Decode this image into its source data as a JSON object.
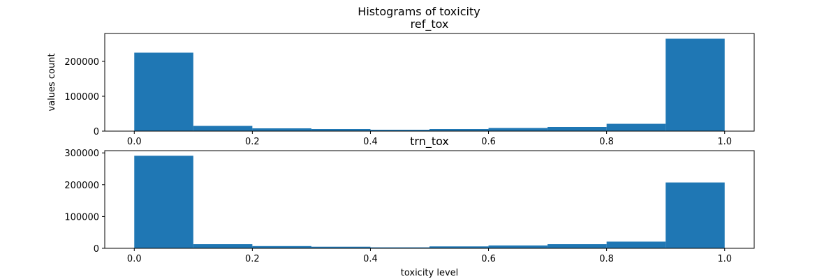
{
  "figure": {
    "suptitle": "Histograms of toxicity"
  },
  "colors": {
    "bar": "#1f77b4",
    "axis": "#000000",
    "background": "#ffffff"
  },
  "chart_data": [
    {
      "type": "bar",
      "title": "ref_tox",
      "xlabel": "",
      "ylabel": "values count",
      "bin_edges": [
        0.0,
        0.1,
        0.2,
        0.3,
        0.4,
        0.5,
        0.6,
        0.7,
        0.8,
        0.9,
        1.0
      ],
      "values": [
        225000,
        15000,
        8000,
        6000,
        4000,
        6000,
        9000,
        12000,
        21000,
        265000
      ],
      "xlim": [
        -0.05,
        1.05
      ],
      "ylim": [
        0,
        280000
      ],
      "xticks": [
        0.0,
        0.2,
        0.4,
        0.6,
        0.8,
        1.0
      ],
      "xtick_labels": [
        "0.0",
        "0.2",
        "0.4",
        "0.6",
        "0.8",
        "1.0"
      ],
      "yticks": [
        0,
        100000,
        200000
      ],
      "ytick_labels": [
        "0",
        "100000",
        "200000"
      ],
      "grid": false
    },
    {
      "type": "bar",
      "title": "trn_tox",
      "xlabel": "toxicity level",
      "ylabel": "",
      "bin_edges": [
        0.0,
        0.1,
        0.2,
        0.3,
        0.4,
        0.5,
        0.6,
        0.7,
        0.8,
        0.9,
        1.0
      ],
      "values": [
        291000,
        13000,
        7000,
        5000,
        3000,
        6000,
        9000,
        13000,
        21000,
        207000
      ],
      "xlim": [
        -0.05,
        1.05
      ],
      "ylim": [
        0,
        307000
      ],
      "xticks": [
        0.0,
        0.2,
        0.4,
        0.6,
        0.8,
        1.0
      ],
      "xtick_labels": [
        "0.0",
        "0.2",
        "0.4",
        "0.6",
        "0.8",
        "1.0"
      ],
      "yticks": [
        0,
        100000,
        200000,
        300000
      ],
      "ytick_labels": [
        "0",
        "100000",
        "200000",
        "300000"
      ],
      "grid": false
    }
  ]
}
